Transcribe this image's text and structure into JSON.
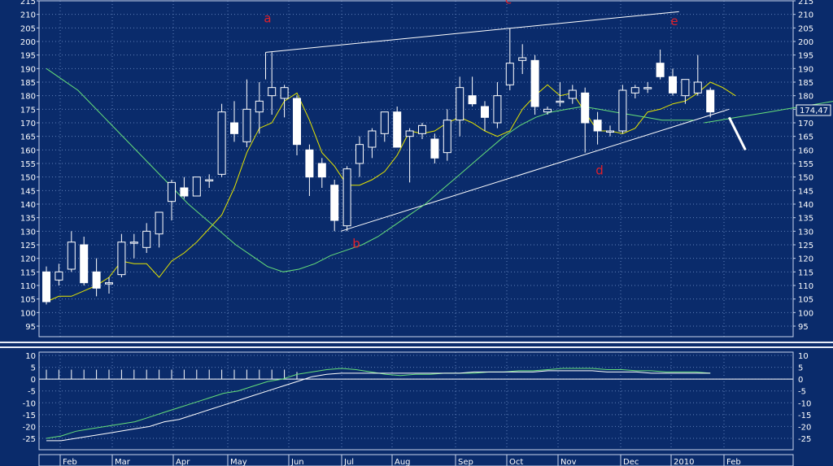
{
  "colors": {
    "background": "#0a2b6b",
    "grid": "#5f7fb8",
    "frame": "#c9d6ee",
    "axis_text": "#ffffff",
    "candle": "#ffffff",
    "ma_fast": "#e6e600",
    "ma_slow": "#66e07a",
    "trendline": "#ffffff",
    "wave_label": "#e0202a",
    "osc_line": "#66e07a",
    "osc_signal": "#ffffff"
  },
  "price_axis": {
    "min": 95,
    "max": 215,
    "step": 5,
    "ticks": [
      95,
      100,
      105,
      110,
      115,
      120,
      125,
      130,
      135,
      140,
      145,
      150,
      155,
      160,
      165,
      170,
      175,
      180,
      185,
      190,
      195,
      200,
      205,
      210,
      215
    ]
  },
  "osc_axis": {
    "min": -25,
    "max": 10,
    "step": 5,
    "ticks": [
      10,
      5,
      0,
      -5,
      -10,
      -15,
      -20,
      -25
    ]
  },
  "months": [
    "Feb",
    "Mar",
    "Apr",
    "May",
    "Jun",
    "Jul",
    "Aug",
    "Sep",
    "Oct",
    "Nov",
    "Dec",
    "2010",
    "Feb"
  ],
  "last_price_label": "174,47",
  "wave_labels": [
    {
      "text": "a",
      "price": 207
    },
    {
      "text": "b",
      "price": 124
    },
    {
      "text": "c",
      "price": 214
    },
    {
      "text": "d",
      "price": 151
    },
    {
      "text": "e",
      "price": 206
    }
  ],
  "chart_data": {
    "type": "candlestick",
    "period": "weekly",
    "candles": [
      {
        "o": 115,
        "h": 117,
        "l": 103,
        "c": 104
      },
      {
        "o": 112,
        "h": 118,
        "l": 110,
        "c": 115
      },
      {
        "o": 116,
        "h": 130,
        "l": 115,
        "c": 126
      },
      {
        "o": 125,
        "h": 128,
        "l": 110,
        "c": 111
      },
      {
        "o": 115,
        "h": 120,
        "l": 106,
        "c": 109
      },
      {
        "o": 111,
        "h": 113,
        "l": 107,
        "c": 111
      },
      {
        "o": 114,
        "h": 129,
        "l": 113,
        "c": 126
      },
      {
        "o": 126,
        "h": 129,
        "l": 120,
        "c": 126
      },
      {
        "o": 124,
        "h": 133,
        "l": 122,
        "c": 130
      },
      {
        "o": 129,
        "h": 137,
        "l": 124,
        "c": 137
      },
      {
        "o": 141,
        "h": 149,
        "l": 134,
        "c": 148
      },
      {
        "o": 146,
        "h": 150,
        "l": 142,
        "c": 143
      },
      {
        "o": 143,
        "h": 150,
        "l": 143,
        "c": 150
      },
      {
        "o": 149,
        "h": 151,
        "l": 146,
        "c": 149
      },
      {
        "o": 151,
        "h": 177,
        "l": 150,
        "c": 174
      },
      {
        "o": 170,
        "h": 178,
        "l": 163,
        "c": 166
      },
      {
        "o": 163,
        "h": 186,
        "l": 161,
        "c": 175
      },
      {
        "o": 174,
        "h": 185,
        "l": 166,
        "c": 178
      },
      {
        "o": 180,
        "h": 196,
        "l": 173,
        "c": 183
      },
      {
        "o": 179,
        "h": 184,
        "l": 172,
        "c": 183
      },
      {
        "o": 179,
        "h": 180,
        "l": 158,
        "c": 162
      },
      {
        "o": 160,
        "h": 162,
        "l": 143,
        "c": 150
      },
      {
        "o": 155,
        "h": 157,
        "l": 146,
        "c": 150
      },
      {
        "o": 147,
        "h": 149,
        "l": 130,
        "c": 134
      },
      {
        "o": 132,
        "h": 154,
        "l": 130,
        "c": 153
      },
      {
        "o": 155,
        "h": 165,
        "l": 150,
        "c": 162
      },
      {
        "o": 161,
        "h": 168,
        "l": 157,
        "c": 167
      },
      {
        "o": 166,
        "h": 174,
        "l": 163,
        "c": 174
      },
      {
        "o": 174,
        "h": 176,
        "l": 161,
        "c": 161
      },
      {
        "o": 165,
        "h": 168,
        "l": 148,
        "c": 167
      },
      {
        "o": 166,
        "h": 170,
        "l": 164,
        "c": 169
      },
      {
        "o": 164,
        "h": 166,
        "l": 155,
        "c": 157
      },
      {
        "o": 159,
        "h": 175,
        "l": 156,
        "c": 171
      },
      {
        "o": 171,
        "h": 187,
        "l": 165,
        "c": 183
      },
      {
        "o": 180,
        "h": 187,
        "l": 176,
        "c": 177
      },
      {
        "o": 176,
        "h": 178,
        "l": 167,
        "c": 172
      },
      {
        "o": 170,
        "h": 185,
        "l": 168,
        "c": 180
      },
      {
        "o": 184,
        "h": 205,
        "l": 182,
        "c": 192
      },
      {
        "o": 193,
        "h": 199,
        "l": 188,
        "c": 194
      },
      {
        "o": 193,
        "h": 195,
        "l": 173,
        "c": 176
      },
      {
        "o": 174,
        "h": 176,
        "l": 173,
        "c": 175
      },
      {
        "o": 178,
        "h": 185,
        "l": 176,
        "c": 178
      },
      {
        "o": 179,
        "h": 184,
        "l": 177,
        "c": 182
      },
      {
        "o": 181,
        "h": 183,
        "l": 159,
        "c": 170
      },
      {
        "o": 171,
        "h": 174,
        "l": 162,
        "c": 167
      },
      {
        "o": 167,
        "h": 169,
        "l": 165,
        "c": 167
      },
      {
        "o": 167,
        "h": 184,
        "l": 166,
        "c": 182
      },
      {
        "o": 181,
        "h": 184,
        "l": 179,
        "c": 183
      },
      {
        "o": 183,
        "h": 185,
        "l": 181,
        "c": 183
      },
      {
        "o": 192,
        "h": 197,
        "l": 186,
        "c": 187
      },
      {
        "o": 187,
        "h": 190,
        "l": 180,
        "c": 181
      },
      {
        "o": 180,
        "h": 186,
        "l": 177,
        "c": 186
      },
      {
        "o": 181,
        "h": 195,
        "l": 180,
        "c": 185
      },
      {
        "o": 182,
        "h": 183,
        "l": 172,
        "c": 174
      }
    ],
    "ma_fast": [
      190,
      186,
      182,
      176,
      170,
      164,
      158,
      152,
      146,
      140,
      135,
      130,
      125,
      121,
      117,
      115,
      116,
      118,
      121,
      123,
      125,
      128,
      132,
      136,
      140,
      145,
      150,
      155,
      160,
      165,
      169,
      172,
      174,
      175,
      176,
      175,
      174,
      173,
      172,
      171,
      171,
      171
    ],
    "ma_fast_start": 0,
    "ma_slow": [
      104,
      106,
      106,
      108,
      110,
      113,
      119,
      118,
      118,
      113,
      119,
      122,
      126,
      131,
      136,
      146,
      159,
      168,
      170,
      178,
      181,
      171,
      159,
      154,
      147,
      147,
      149,
      152,
      158,
      167,
      166,
      167,
      170,
      172,
      170,
      167,
      165,
      167,
      175,
      180,
      184,
      180,
      181,
      174,
      167,
      167,
      166,
      168,
      174,
      175,
      177,
      178,
      181,
      185,
      183,
      180
    ],
    "ma_long": [
      170,
      171,
      172,
      173,
      174,
      175,
      176,
      177,
      178
    ],
    "trend_lines": [
      {
        "from": {
          "i": 17.5,
          "p": 196
        },
        "to": {
          "i": 50.5,
          "p": 211
        }
      },
      {
        "from": {
          "i": 23.5,
          "p": 130
        },
        "to": {
          "i": 54.5,
          "p": 175
        }
      }
    ],
    "oscillator": {
      "line": [
        -25,
        -24,
        -22,
        -21,
        -20,
        -19,
        -18,
        -16,
        -14,
        -12,
        -10,
        -8,
        -6,
        -5,
        -3,
        -1,
        0,
        2,
        3,
        4,
        4.5,
        4,
        3,
        2,
        1.5,
        2,
        2,
        2.5,
        2.5,
        2.5,
        3,
        3,
        3.5,
        3.5,
        4,
        4.5,
        4.5,
        4.5,
        4,
        4,
        3.5,
        3.5,
        3,
        3,
        3,
        2.5
      ],
      "signal": [
        -26,
        -26,
        -25,
        -24,
        -23,
        -22,
        -21,
        -20,
        -18,
        -17,
        -15,
        -13,
        -11,
        -9,
        -7,
        -5,
        -3,
        -1,
        1,
        2,
        2.5,
        2.5,
        2.5,
        2.5,
        2.5,
        2.5,
        2.5,
        2.5,
        2.5,
        3,
        3,
        3,
        3,
        3,
        3.5,
        3.5,
        3.5,
        3.5,
        3,
        3,
        3,
        2.5,
        2.5,
        2.5,
        2.5,
        2.5
      ],
      "histogram": [
        4,
        4,
        4,
        4,
        4,
        4,
        4,
        4,
        4,
        4,
        4,
        4,
        4,
        4,
        4,
        4,
        4,
        4,
        4,
        4,
        3
      ]
    }
  }
}
